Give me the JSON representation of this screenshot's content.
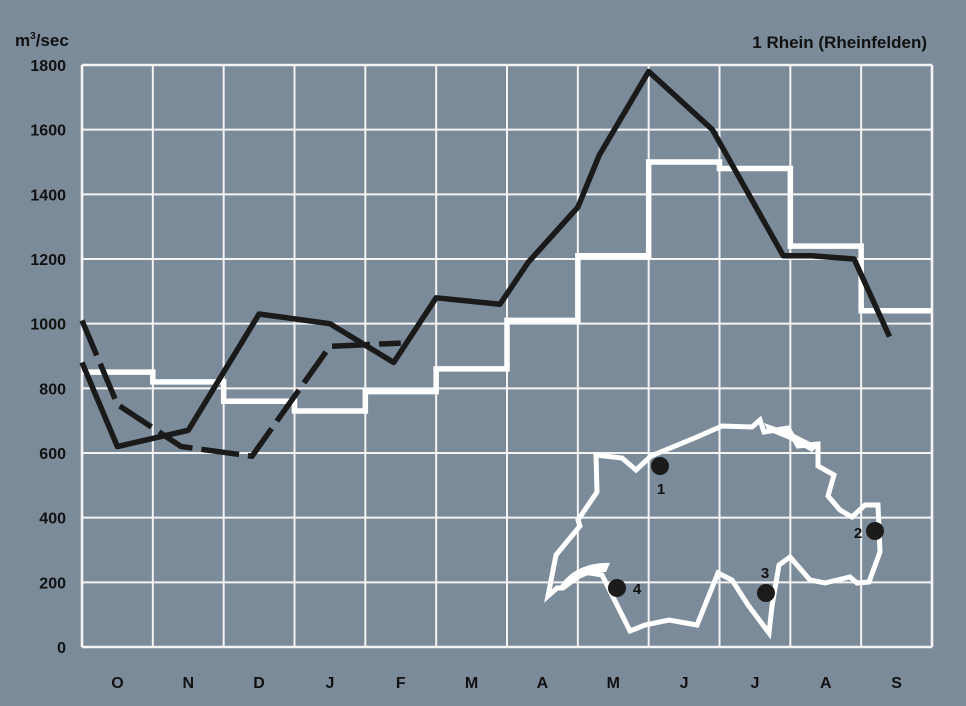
{
  "chart_data": {
    "type": "line",
    "title": "1  Rhein (Rheinfelden)",
    "ylabel_main": "m",
    "ylabel_sup": "3",
    "ylabel_rest": "/sec",
    "ylim": [
      0,
      1800
    ],
    "yticks": [
      0,
      200,
      400,
      600,
      800,
      1000,
      1200,
      1400,
      1600,
      1800
    ],
    "categories": [
      "O",
      "N",
      "D",
      "J",
      "F",
      "M",
      "A",
      "M",
      "J",
      "J",
      "A",
      "S"
    ],
    "grid": true,
    "series": [
      {
        "style": "step-white",
        "color": "#ffffff",
        "values": [
          850,
          820,
          760,
          730,
          790,
          860,
          1010,
          1210,
          1500,
          1480,
          1240,
          1040
        ]
      },
      {
        "style": "solid-dark",
        "color": "#1a1a1a",
        "x": [
          0,
          0.5,
          1.5,
          2.5,
          3.5,
          4.4,
          5.0,
          5.9,
          6.3,
          7.0,
          7.3,
          8.0,
          8.9,
          9.9,
          10.3,
          10.9,
          11.4
        ],
        "y": [
          880,
          620,
          670,
          1030,
          1000,
          880,
          1080,
          1060,
          1190,
          1360,
          1520,
          1780,
          1600,
          1210,
          1210,
          1200,
          960
        ]
      },
      {
        "style": "dashed-dark",
        "color": "#1a1a1a",
        "x": [
          0,
          0.5,
          1.4,
          2.4,
          3.5,
          4.5
        ],
        "y": [
          1010,
          750,
          620,
          590,
          930,
          940
        ]
      }
    ]
  },
  "map": {
    "stations": [
      {
        "label": "1"
      },
      {
        "label": "2"
      },
      {
        "label": "3"
      },
      {
        "label": "4"
      }
    ]
  }
}
